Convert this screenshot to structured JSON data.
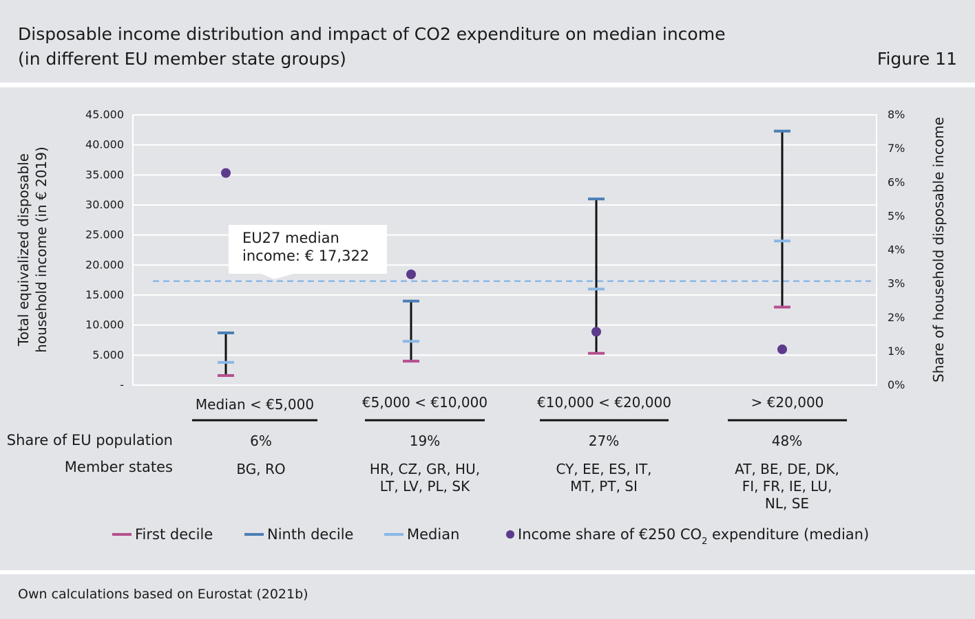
{
  "header": {
    "title_line1": "Disposable income distribution and impact of CO2 expenditure on median income",
    "title_line2": "(in different EU member state groups)",
    "figure_label": "Figure 11"
  },
  "footer": {
    "source": "Own calculations based on Eurostat (2021b)"
  },
  "colors": {
    "first_decile": "#b5508e",
    "ninth_decile": "#4a7fb5",
    "median": "#8ab8e6",
    "income_share": "#5c3a8c",
    "range_line": "#111111",
    "reference_line": "#8ab8e6"
  },
  "chart_data": {
    "type": "scatter",
    "title": "Disposable income distribution and impact of CO2 expenditure on median income (in different EU member state groups)",
    "ylabel_left_line1": "Total equivalized disposable",
    "ylabel_left_line2": "household income (in € 2019)",
    "ylabel_right": "Share of household disposable income",
    "ylim_left": [
      0,
      45000
    ],
    "ylim_right": [
      0,
      8
    ],
    "yticks_left": [
      "-",
      "5.000",
      "10.000",
      "15.000",
      "20.000",
      "25.000",
      "30.000",
      "35.000",
      "40.000",
      "45.000"
    ],
    "yticks_right": [
      "0%",
      "1%",
      "2%",
      "3%",
      "4%",
      "5%",
      "6%",
      "7%",
      "8%"
    ],
    "grid": true,
    "categories": [
      "Median < €5,000",
      "€5,000 < €10,000",
      "€10,000 < €20,000",
      "> €20,000"
    ],
    "series": [
      {
        "name": "First decile",
        "key": "first",
        "axis": "left",
        "values": [
          1600,
          4000,
          5300,
          13000
        ]
      },
      {
        "name": "Ninth decile",
        "key": "ninth",
        "axis": "left",
        "values": [
          8700,
          14000,
          31000,
          42300
        ]
      },
      {
        "name": "Median",
        "key": "median",
        "axis": "left",
        "values": [
          3800,
          7300,
          16000,
          24000
        ]
      },
      {
        "name": "Income share of €250 CO2 expenditure (median)",
        "key": "share",
        "axis": "right",
        "values": [
          6.28,
          3.28,
          1.58,
          1.06
        ]
      }
    ],
    "reference_line": {
      "value": 17322,
      "label_line1": "EU27 median",
      "label_line2": "income: € 17,322"
    },
    "table": {
      "row_labels": [
        "Share of EU population",
        "Member states"
      ],
      "population_share": [
        "6%",
        "19%",
        "27%",
        "48%"
      ],
      "member_states": [
        [
          "BG, RO"
        ],
        [
          "HR, CZ, GR, HU,",
          "LT, LV, PL, SK"
        ],
        [
          "CY, EE, ES, IT,",
          "MT, PT, SI"
        ],
        [
          "AT, BE, DE, DK,",
          "FI, FR, IE, LU,",
          "NL, SE"
        ]
      ]
    },
    "legend": {
      "first": "First decile",
      "ninth": "Ninth decile",
      "median": "Median",
      "share_prefix": "Income share of €250 CO",
      "share_sub": "2",
      "share_suffix": " expenditure (median)"
    }
  }
}
